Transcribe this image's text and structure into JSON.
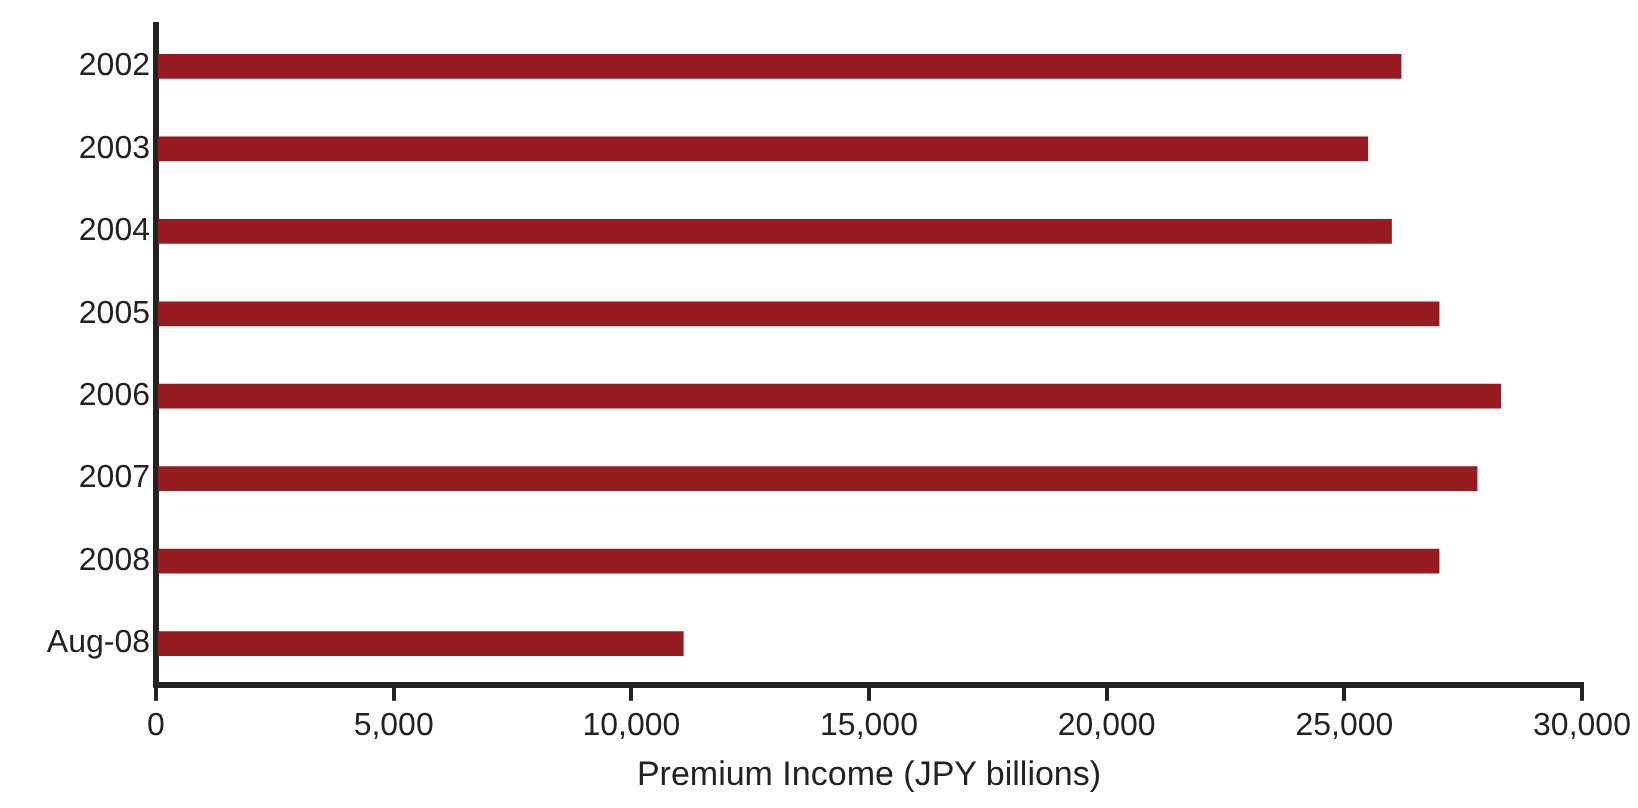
{
  "chart_data": {
    "type": "bar",
    "orientation": "horizontal",
    "xlabel": "Premium Income (JPY billions)",
    "categories": [
      "2002",
      "2003",
      "2004",
      "2005",
      "2006",
      "2007",
      "2008",
      "Aug-08"
    ],
    "values": [
      26200,
      25500,
      26000,
      27000,
      28300,
      27800,
      27000,
      11100
    ],
    "color": "#981b22",
    "xlim": [
      0,
      30000
    ],
    "xticks": [
      {
        "value": 0,
        "label": "0"
      },
      {
        "value": 5000,
        "label": "5,000"
      },
      {
        "value": 10000,
        "label": "10,000"
      },
      {
        "value": 15000,
        "label": "15,000"
      },
      {
        "value": 20000,
        "label": "20,000"
      },
      {
        "value": 25000,
        "label": "25,000"
      },
      {
        "value": 30000,
        "label": "30,000"
      }
    ],
    "grid": false,
    "legend": false
  }
}
